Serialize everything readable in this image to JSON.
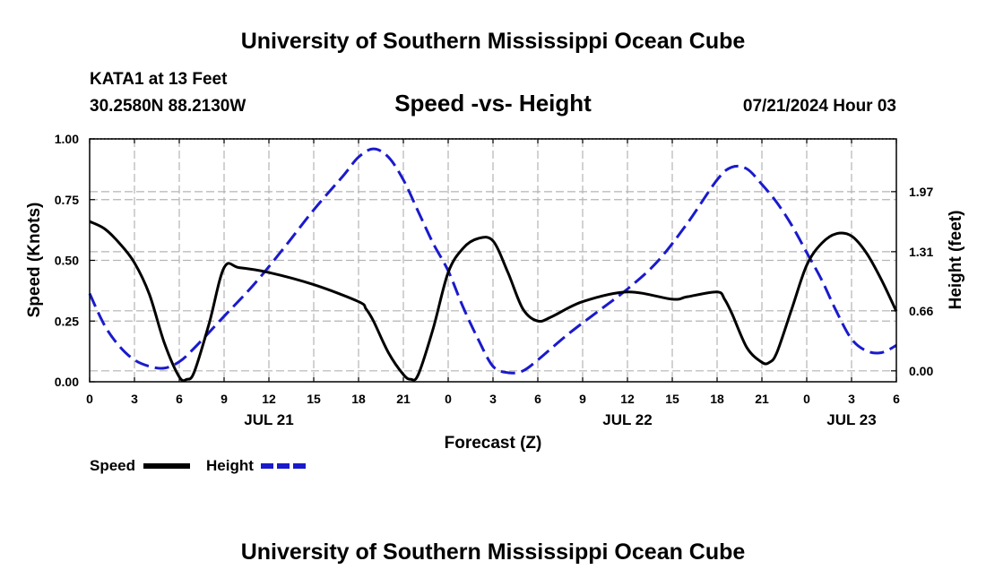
{
  "header": {
    "title": "University of Southern Mississippi Ocean Cube",
    "station": "KATA1 at 13 Feet",
    "coords": "30.2580N  88.2130W",
    "datetime": "07/21/2024 Hour 03"
  },
  "footer": {
    "title": "University of Southern Mississippi Ocean Cube"
  },
  "colors": {
    "speed": "#000000",
    "height": "#1a1acc",
    "grid": "#b4b4b4"
  },
  "chart_data": {
    "type": "line",
    "title": "Speed -vs- Height",
    "xlabel": "Forecast (Z)",
    "ylabel": "Speed (Knots)",
    "y2label": "Height (feet)",
    "xlim": [
      0,
      54
    ],
    "ylim": [
      0,
      1.0
    ],
    "y2lim": [
      -0.12,
      2.55
    ],
    "x_tick_values": [
      0,
      3,
      6,
      9,
      12,
      15,
      18,
      21,
      24,
      27,
      30,
      33,
      36,
      39,
      42,
      45,
      48,
      51,
      54
    ],
    "x_tick_labels": [
      "0",
      "3",
      "6",
      "9",
      "12",
      "15",
      "18",
      "21",
      "0",
      "3",
      "6",
      "9",
      "12",
      "15",
      "18",
      "21",
      "0",
      "3",
      "6"
    ],
    "y_ticks": [
      {
        "value": 0.0,
        "label": "0.00"
      },
      {
        "value": 0.25,
        "label": "0.25"
      },
      {
        "value": 0.5,
        "label": "0.50"
      },
      {
        "value": 0.75,
        "label": "0.75"
      },
      {
        "value": 1.0,
        "label": "1.00"
      }
    ],
    "y2_ticks": [
      {
        "value": 0.0,
        "label": "0.00"
      },
      {
        "value": 0.66,
        "label": "0.66"
      },
      {
        "value": 1.31,
        "label": "1.31"
      },
      {
        "value": 1.97,
        "label": "1.97"
      }
    ],
    "date_labels": [
      {
        "x": 12,
        "label": "JUL 21"
      },
      {
        "x": 36,
        "label": "JUL 22"
      },
      {
        "x": 51,
        "label": "JUL 23"
      }
    ],
    "series": [
      {
        "name": "Speed",
        "axis": "left",
        "style": "solid",
        "x": [
          0,
          1,
          2,
          3,
          4,
          5,
          6,
          6.5,
          7,
          8,
          9,
          10,
          12,
          15,
          18,
          18.5,
          19,
          20,
          21,
          21.5,
          22,
          23,
          24,
          25,
          26,
          27,
          28,
          29,
          30,
          31,
          33,
          36,
          39,
          40,
          42,
          42.5,
          43,
          44,
          45,
          45.5,
          46,
          47,
          48,
          49,
          50,
          51,
          52,
          53,
          54
        ],
        "values": [
          0.66,
          0.63,
          0.57,
          0.49,
          0.36,
          0.16,
          0.02,
          0.01,
          0.04,
          0.24,
          0.47,
          0.47,
          0.45,
          0.4,
          0.33,
          0.3,
          0.25,
          0.12,
          0.03,
          0.01,
          0.03,
          0.22,
          0.45,
          0.55,
          0.59,
          0.58,
          0.45,
          0.3,
          0.25,
          0.27,
          0.33,
          0.37,
          0.34,
          0.35,
          0.37,
          0.34,
          0.28,
          0.14,
          0.08,
          0.08,
          0.12,
          0.3,
          0.48,
          0.57,
          0.61,
          0.6,
          0.53,
          0.42,
          0.29
        ]
      },
      {
        "name": "Height",
        "axis": "right",
        "style": "dashed",
        "x": [
          0,
          1,
          2,
          3,
          4,
          5,
          6,
          7,
          9,
          11,
          13,
          15,
          17,
          18,
          19,
          20,
          21,
          22,
          23,
          24,
          25,
          26,
          27,
          28,
          29,
          30,
          32,
          34,
          36,
          38,
          40,
          42,
          43,
          44,
          45,
          46,
          47,
          48,
          49,
          50,
          51,
          52,
          53,
          54
        ],
        "values": [
          0.85,
          0.5,
          0.27,
          0.12,
          0.05,
          0.03,
          0.1,
          0.25,
          0.6,
          0.95,
          1.35,
          1.77,
          2.15,
          2.35,
          2.44,
          2.35,
          2.1,
          1.75,
          1.4,
          1.1,
          0.7,
          0.35,
          0.05,
          -0.02,
          0.0,
          0.12,
          0.4,
          0.65,
          0.9,
          1.2,
          1.62,
          2.1,
          2.24,
          2.22,
          2.05,
          1.85,
          1.6,
          1.3,
          1.0,
          0.65,
          0.35,
          0.22,
          0.2,
          0.28
        ]
      }
    ]
  }
}
